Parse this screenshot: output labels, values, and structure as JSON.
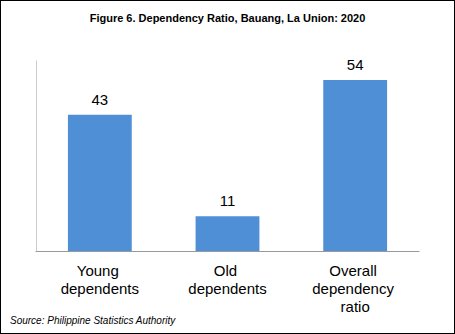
{
  "chart_data": {
    "type": "bar",
    "title": "Figure 6. Dependency Ratio, Bauang, La Union: 2020",
    "source": "Source: Philippine Statistics Authority",
    "categories": [
      "Young dependents",
      "Old dependents",
      "Overall dependency ratio"
    ],
    "values": [
      43,
      11,
      54
    ],
    "color": "#4f8fd6",
    "ylim": [
      0,
      60
    ],
    "grid": false,
    "data_labels": true,
    "tick_labels": "x"
  }
}
